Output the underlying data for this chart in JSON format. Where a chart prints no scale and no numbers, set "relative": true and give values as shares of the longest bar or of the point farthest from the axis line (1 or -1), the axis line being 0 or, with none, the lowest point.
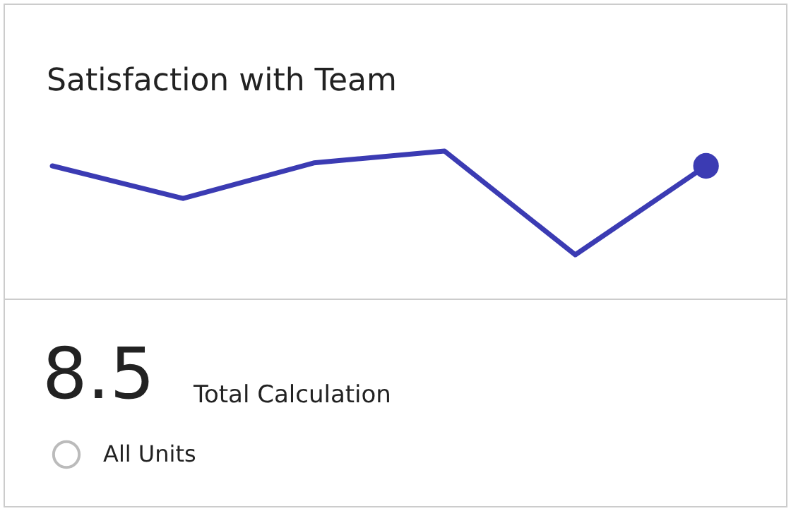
{
  "chart_data": {
    "type": "line",
    "title": "Satisfaction with Team",
    "relative": true,
    "categories": [
      null,
      null,
      null,
      null,
      null,
      null
    ],
    "series": [
      {
        "color": "#3b3bb3",
        "values": [
          0.9,
          0.68,
          0.92,
          1,
          0.3,
          0.9
        ]
      }
    ],
    "annotations": [
      "8.5",
      "Total Calculation",
      "All Units"
    ]
  }
}
